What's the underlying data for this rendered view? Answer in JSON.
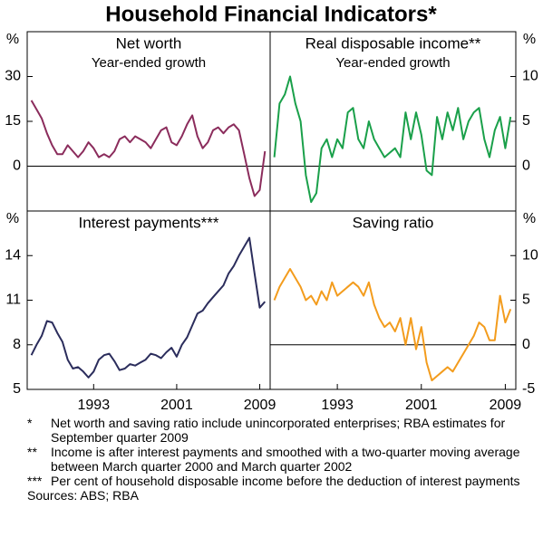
{
  "title": "Household Financial Indicators*",
  "chart_data": [
    {
      "type": "line",
      "title": "Net worth",
      "subtitle": "Year-ended growth",
      "ylabel": "%",
      "color": "#8b2c5c",
      "x": [
        1987,
        1987.5,
        1988,
        1988.5,
        1989,
        1989.5,
        1990,
        1990.5,
        1991,
        1991.5,
        1992,
        1992.5,
        1993,
        1993.5,
        1994,
        1994.5,
        1995,
        1995.5,
        1996,
        1996.5,
        1997,
        1997.5,
        1998,
        1998.5,
        1999,
        1999.5,
        2000,
        2000.5,
        2001,
        2001.5,
        2002,
        2002.5,
        2003,
        2003.5,
        2004,
        2004.5,
        2005,
        2005.5,
        2006,
        2006.5,
        2007,
        2007.5,
        2008,
        2008.5,
        2009,
        2009.5
      ],
      "values": [
        22,
        19,
        16,
        11,
        7,
        4,
        4,
        7,
        5,
        3,
        5,
        8,
        6,
        3,
        4,
        3,
        5,
        9,
        10,
        8,
        10,
        9,
        8,
        6,
        9,
        12,
        13,
        8,
        7,
        10,
        14,
        17,
        10,
        6,
        8,
        12,
        13,
        11,
        13,
        14,
        12,
        4,
        -4,
        -10,
        -8,
        5
      ],
      "xlim": [
        1986.6,
        2010
      ],
      "ylim": [
        -15,
        45
      ],
      "yticks": [
        0,
        15,
        30
      ]
    },
    {
      "type": "line",
      "title": "Real disposable income**",
      "subtitle": "Year-ended growth",
      "ylabel": "%",
      "color": "#1aa04a",
      "x": [
        1987,
        1987.5,
        1988,
        1988.5,
        1989,
        1989.5,
        1990,
        1990.5,
        1991,
        1991.5,
        1992,
        1992.5,
        1993,
        1993.5,
        1994,
        1994.5,
        1995,
        1995.5,
        1996,
        1996.5,
        1997,
        1997.5,
        1998,
        1998.5,
        1999,
        1999.5,
        2000,
        2000.5,
        2001,
        2001.5,
        2002,
        2002.5,
        2003,
        2003.5,
        2004,
        2004.5,
        2005,
        2005.5,
        2006,
        2006.5,
        2007,
        2007.5,
        2008,
        2008.5,
        2009,
        2009.5
      ],
      "values": [
        1,
        7,
        8,
        10,
        7,
        5,
        -1,
        -4,
        -3,
        2,
        3,
        1,
        3,
        2,
        6,
        6.5,
        3,
        2,
        5,
        3,
        2,
        1,
        1.5,
        2,
        1,
        6,
        3,
        6,
        3.5,
        -0.5,
        -1,
        5.5,
        3,
        6,
        4,
        6.5,
        3,
        5,
        6,
        6.5,
        3,
        1,
        4,
        5.5,
        2,
        5.5
      ],
      "xlim": [
        1986.6,
        2010
      ],
      "ylim": [
        -5,
        15
      ],
      "yticks": [
        0,
        5,
        10
      ]
    },
    {
      "type": "line",
      "title": "Interest payments***",
      "ylabel": "%",
      "color": "#2b2d5c",
      "x": [
        1987,
        1987.5,
        1988,
        1988.5,
        1989,
        1989.5,
        1990,
        1990.5,
        1991,
        1991.5,
        1992,
        1992.5,
        1993,
        1993.5,
        1994,
        1994.5,
        1995,
        1995.5,
        1996,
        1996.5,
        1997,
        1997.5,
        1998,
        1998.5,
        1999,
        1999.5,
        2000,
        2000.5,
        2001,
        2001.5,
        2002,
        2002.5,
        2003,
        2003.5,
        2004,
        2004.5,
        2005,
        2005.5,
        2006,
        2006.5,
        2007,
        2007.5,
        2008,
        2008.5,
        2009,
        2009.5
      ],
      "values": [
        7.3,
        8.0,
        8.6,
        9.6,
        9.5,
        8.8,
        8.2,
        7.0,
        6.4,
        6.5,
        6.2,
        5.8,
        6.2,
        7.0,
        7.3,
        7.4,
        6.9,
        6.3,
        6.4,
        6.7,
        6.6,
        6.8,
        7.0,
        7.4,
        7.3,
        7.1,
        7.5,
        7.8,
        7.2,
        8.0,
        8.5,
        9.3,
        10.1,
        10.3,
        10.8,
        11.2,
        11.6,
        12.0,
        12.8,
        13.3,
        14.0,
        14.6,
        15.2,
        12.8,
        10.5,
        10.9
      ],
      "xlim": [
        1986.6,
        2010
      ],
      "xticks": [
        1993,
        2001,
        2009
      ],
      "ylim": [
        5,
        17
      ],
      "yticks": [
        5,
        8,
        11,
        14
      ]
    },
    {
      "type": "line",
      "title": "Saving ratio",
      "ylabel": "%",
      "color": "#f39c1d",
      "x": [
        1987,
        1987.5,
        1988,
        1988.5,
        1989,
        1989.5,
        1990,
        1990.5,
        1991,
        1991.5,
        1992,
        1992.5,
        1993,
        1993.5,
        1994,
        1994.5,
        1995,
        1995.5,
        1996,
        1996.5,
        1997,
        1997.5,
        1998,
        1998.5,
        1999,
        1999.5,
        2000,
        2000.5,
        2001,
        2001.5,
        2002,
        2002.5,
        2003,
        2003.5,
        2004,
        2004.5,
        2005,
        2005.5,
        2006,
        2006.5,
        2007,
        2007.5,
        2008,
        2008.5,
        2009,
        2009.5
      ],
      "values": [
        5,
        6.5,
        7.5,
        8.5,
        7.5,
        6.5,
        5,
        5.5,
        4.5,
        6,
        5,
        7,
        5.5,
        6,
        6.5,
        7,
        6.5,
        5.5,
        7,
        4.5,
        3,
        2,
        2.5,
        1.5,
        3,
        0,
        3,
        -0.5,
        2,
        -2,
        -4,
        -3.5,
        -3,
        -2.5,
        -3,
        -2,
        -1,
        0,
        1,
        2.5,
        2,
        0.5,
        0.5,
        5.5,
        2.5,
        4
      ],
      "xlim": [
        1986.6,
        2010
      ],
      "xticks": [
        1993,
        2001,
        2009
      ],
      "ylim": [
        -5,
        15
      ],
      "yticks": [
        -5,
        0,
        5,
        10
      ]
    }
  ],
  "notes": [
    {
      "marker": "*",
      "text": "Net worth and saving ratio include unincorporated enterprises; RBA estimates for September quarter 2009"
    },
    {
      "marker": "**",
      "text": "Income is after interest payments and smoothed with a two-quarter moving average between March quarter 2000 and March quarter 2002"
    },
    {
      "marker": "***",
      "text": "Per cent of household disposable income before the deduction of interest payments"
    }
  ],
  "sources": "Sources: ABS; RBA"
}
